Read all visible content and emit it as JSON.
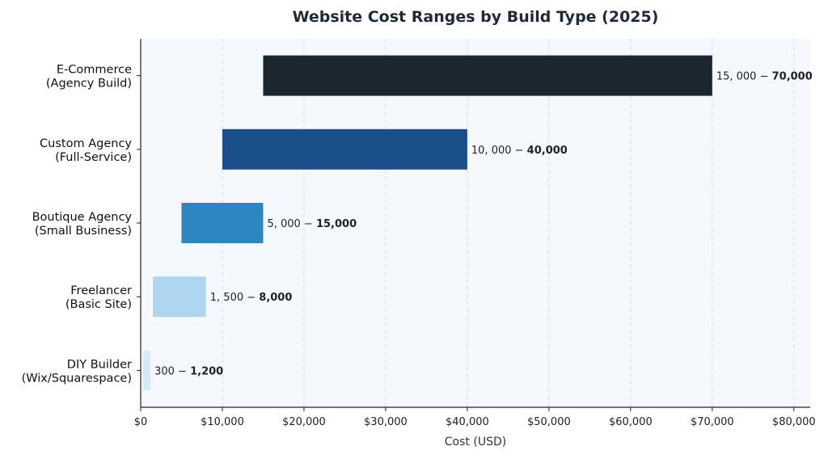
{
  "chart_data": {
    "type": "bar",
    "orientation": "horizontal",
    "title": "Website Cost Ranges by Build Type (2025)",
    "xlabel": "Cost (USD)",
    "ylabel": "",
    "xlim": [
      0,
      82000
    ],
    "grid": "x-dashed",
    "background_color": "#f5f9fd",
    "categories": [
      [
        "E-Commerce",
        "(Agency Build)"
      ],
      [
        "Custom Agency",
        "(Full-Service)"
      ],
      [
        "Boutique Agency",
        "(Small Business)"
      ],
      [
        "Freelancer",
        "(Basic Site)"
      ],
      [
        "DIY Builder",
        "(Wix/Squarespace)"
      ]
    ],
    "ranges": [
      {
        "low": 15000,
        "high": 70000,
        "label_low": "15, 000 − ",
        "label_high": "70,000",
        "color": "#1c2631"
      },
      {
        "low": 10000,
        "high": 40000,
        "label_low": "10, 000 − ",
        "label_high": "40,000",
        "color": "#1b4f8a"
      },
      {
        "low": 5000,
        "high": 15000,
        "label_low": "5, 000 − ",
        "label_high": "15,000",
        "color": "#2e86c1"
      },
      {
        "low": 1500,
        "high": 8000,
        "label_low": "1, 500 − ",
        "label_high": "8,000",
        "color": "#aed6f1"
      },
      {
        "low": 300,
        "high": 1200,
        "label_low": "300 − ",
        "label_high": "1,200",
        "color": "#d6eaf8"
      }
    ],
    "xticks": [
      0,
      10000,
      20000,
      30000,
      40000,
      50000,
      60000,
      70000,
      80000
    ],
    "xtick_labels": [
      "$0",
      "$10,000",
      "$20,000",
      "$30,000",
      "$40,000",
      "$50,000",
      "$60,000",
      "$70,000",
      "$80,000"
    ]
  }
}
